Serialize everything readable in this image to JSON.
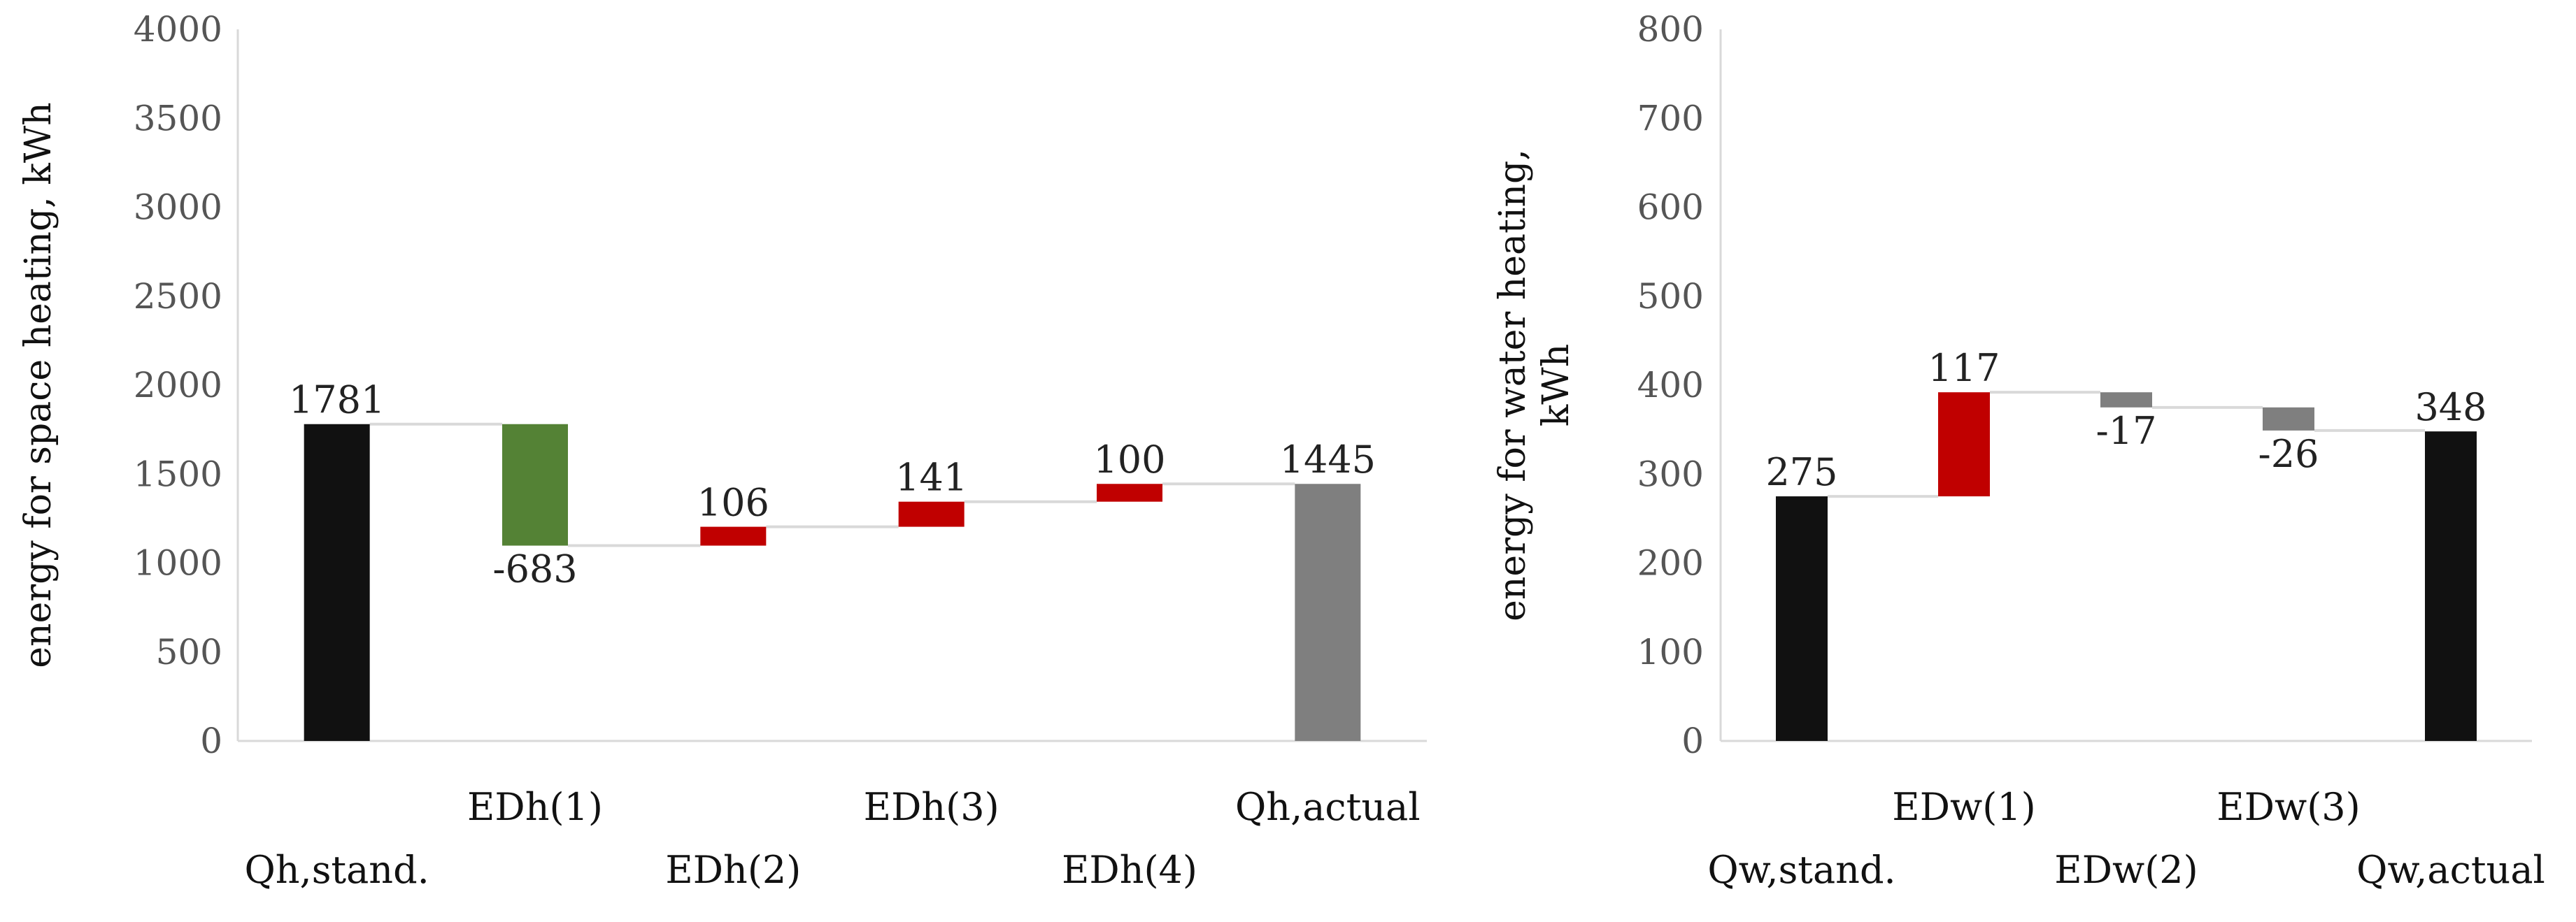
{
  "chart_data": [
    {
      "type": "waterfall",
      "ylabel": "energy for space heating, kWh",
      "ylim": [
        0,
        4000
      ],
      "yticks": [
        0,
        500,
        1000,
        1500,
        2000,
        2500,
        3000,
        3500,
        4000
      ],
      "grid": false,
      "legend": "none",
      "categories": [
        "Qh,stand.",
        "EDh(1)",
        "EDh(2)",
        "EDh(3)",
        "EDh(4)",
        "Qh,actual"
      ],
      "values": [
        1781,
        -683,
        106,
        141,
        100,
        1445
      ],
      "kinds": [
        "total",
        "delta",
        "delta",
        "delta",
        "delta",
        "total"
      ],
      "labels": [
        "1781",
        "-683",
        "106",
        "141",
        "100",
        "1445"
      ],
      "colors": [
        "#111111",
        "#548235",
        "#c00000",
        "#c00000",
        "#c00000",
        "#7f7f7f"
      ]
    },
    {
      "type": "waterfall",
      "ylabel": "energy for water heating, kWh",
      "ylim": [
        0,
        800
      ],
      "yticks": [
        0,
        100,
        200,
        300,
        400,
        500,
        600,
        700,
        800
      ],
      "grid": false,
      "legend": "none",
      "categories": [
        "Qw,stand.",
        "EDw(1)",
        "EDw(2)",
        "EDw(3)",
        "Qw,actual"
      ],
      "values": [
        275,
        117,
        -17,
        -26,
        348
      ],
      "kinds": [
        "total",
        "delta",
        "delta",
        "delta",
        "total"
      ],
      "labels": [
        "275",
        "117",
        "-17",
        "-26",
        "348"
      ],
      "colors": [
        "#111111",
        "#c00000",
        "#7f7f7f",
        "#7f7f7f",
        "#111111"
      ]
    }
  ]
}
